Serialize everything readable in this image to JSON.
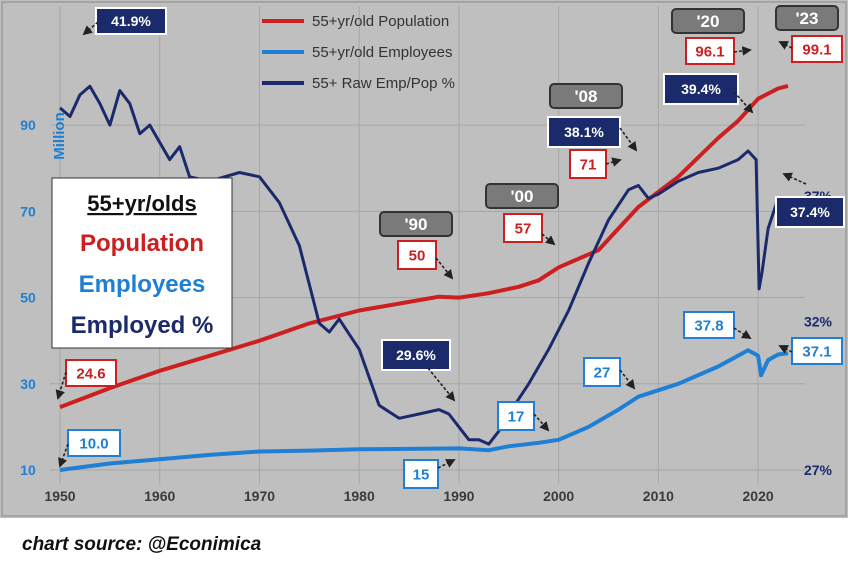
{
  "chart_data": {
    "type": "line",
    "xlim": [
      1950,
      2024
    ],
    "ylim": [
      10,
      100
    ],
    "ylabel": "Million",
    "x_ticks": [
      "1950",
      "1960",
      "1970",
      "1980",
      "1990",
      "2000",
      "2010",
      "2020"
    ],
    "y_ticks": [
      "10",
      "30",
      "50",
      "70",
      "90"
    ],
    "right_ticks": [
      "27%",
      "32%",
      "37%"
    ],
    "grid": true,
    "legend_position": "top-center",
    "series": [
      {
        "name": "55+yr/old Population",
        "color": "#cc1f1f",
        "points": [
          [
            1950,
            24.6
          ],
          [
            1955,
            29
          ],
          [
            1960,
            33
          ],
          [
            1965,
            36.5
          ],
          [
            1970,
            40
          ],
          [
            1975,
            44
          ],
          [
            1980,
            47
          ],
          [
            1985,
            49
          ],
          [
            1988,
            50.2
          ],
          [
            1990,
            50
          ],
          [
            1993,
            51
          ],
          [
            1996,
            52.5
          ],
          [
            1998,
            54
          ],
          [
            2000,
            57
          ],
          [
            2004,
            61
          ],
          [
            2008,
            71
          ],
          [
            2012,
            78
          ],
          [
            2016,
            87
          ],
          [
            2018,
            91
          ],
          [
            2020,
            96.1
          ],
          [
            2022,
            98.5
          ],
          [
            2023,
            99.1
          ]
        ]
      },
      {
        "name": "55+yr/old Employees",
        "color": "#1e7fd4",
        "points": [
          [
            1950,
            10.0
          ],
          [
            1955,
            11.5
          ],
          [
            1960,
            12.5
          ],
          [
            1965,
            13.5
          ],
          [
            1970,
            14.3
          ],
          [
            1975,
            14.5
          ],
          [
            1980,
            14.8
          ],
          [
            1985,
            14.9
          ],
          [
            1990,
            15
          ],
          [
            1993,
            14.6
          ],
          [
            1995,
            15.5
          ],
          [
            1998,
            16.3
          ],
          [
            2000,
            17
          ],
          [
            2003,
            20
          ],
          [
            2006,
            24
          ],
          [
            2008,
            27
          ],
          [
            2012,
            30
          ],
          [
            2016,
            34
          ],
          [
            2019,
            37.8
          ],
          [
            2020,
            36.5
          ],
          [
            2020.3,
            32
          ],
          [
            2021,
            35.5
          ],
          [
            2022,
            36.8
          ],
          [
            2023,
            37.1
          ]
        ]
      },
      {
        "name": "55+ Raw Emp/Pop %",
        "color": "#1b2a6b",
        "points": [
          [
            1950,
            94
          ],
          [
            1951,
            92
          ],
          [
            1952,
            97
          ],
          [
            1953,
            99
          ],
          [
            1954,
            95
          ],
          [
            1955,
            90
          ],
          [
            1956,
            98
          ],
          [
            1957,
            95
          ],
          [
            1958,
            88
          ],
          [
            1959,
            90
          ],
          [
            1960,
            86
          ],
          [
            1961,
            82
          ],
          [
            1962,
            85
          ],
          [
            1963,
            78
          ],
          [
            1965,
            77
          ],
          [
            1968,
            79
          ],
          [
            1970,
            78
          ],
          [
            1972,
            72
          ],
          [
            1974,
            62
          ],
          [
            1976,
            44
          ],
          [
            1977,
            42
          ],
          [
            1978,
            45
          ],
          [
            1980,
            38
          ],
          [
            1982,
            25
          ],
          [
            1984,
            22
          ],
          [
            1986,
            23
          ],
          [
            1988,
            24
          ],
          [
            1989,
            23
          ],
          [
            1990,
            20
          ],
          [
            1991,
            17
          ],
          [
            1992,
            17
          ],
          [
            1993,
            16
          ],
          [
            1994,
            19
          ],
          [
            1995,
            23
          ],
          [
            1997,
            30
          ],
          [
            1999,
            38
          ],
          [
            2001,
            47
          ],
          [
            2003,
            58
          ],
          [
            2005,
            68
          ],
          [
            2007,
            75
          ],
          [
            2008,
            76
          ],
          [
            2009,
            73
          ],
          [
            2010,
            74
          ],
          [
            2012,
            77
          ],
          [
            2014,
            79
          ],
          [
            2016,
            80
          ],
          [
            2018,
            82
          ],
          [
            2019,
            84
          ],
          [
            2019.8,
            82
          ],
          [
            2020.1,
            52
          ],
          [
            2020.4,
            56
          ],
          [
            2021,
            66
          ],
          [
            2022,
            73
          ],
          [
            2023,
            72
          ],
          [
            2024,
            70
          ]
        ]
      }
    ],
    "annotations": {
      "box_title": "55+yr/olds",
      "box_population": "Population",
      "box_employees": "Employees",
      "box_employed": "Employed %",
      "pct_1953": "41.9%",
      "pct_1989": "29.6%",
      "pct_2008": "38.1%",
      "pct_2020": "39.4%",
      "pct_end": "37.4%",
      "yr_90": "'90",
      "yr_00": "'00",
      "yr_08": "'08",
      "yr_20": "'20",
      "yr_23": "'23",
      "pop_1950": "24.6",
      "pop_1990": "50",
      "pop_2000": "57",
      "pop_2008": "71",
      "pop_2020": "96.1",
      "pop_2023": "99.1",
      "emp_1950": "10.0",
      "emp_1990": "15",
      "emp_2000": "17",
      "emp_2008": "27",
      "emp_2019": "37.8",
      "emp_2023": "37.1"
    }
  },
  "source": "chart source: @Econimica"
}
